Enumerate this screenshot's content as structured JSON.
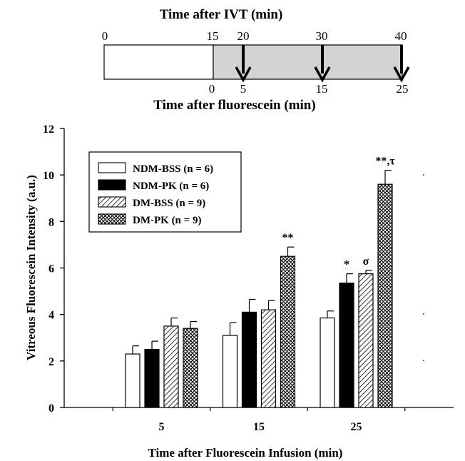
{
  "timeline": {
    "top_title": "Time after IVT (min)",
    "bottom_title": "Time after fluorescein (min)",
    "ivt_ticks": [
      "0",
      "15",
      "20",
      "30",
      "40"
    ],
    "fluorescein_ticks": [
      "0",
      "5",
      "15",
      "25"
    ],
    "colors": {
      "before": "#ffffff",
      "after": "#d3d3d3",
      "arrow": "#000000"
    }
  },
  "chart_data": {
    "type": "bar",
    "title": "",
    "xlabel": "Time after Fluorescein Infusion (min)",
    "ylabel": "Vitreous Fluorescein Intensity (a.u.)",
    "ylim": [
      0,
      12
    ],
    "yticks": [
      "0",
      "2",
      "4",
      "6",
      "8",
      "10",
      "12"
    ],
    "categories": [
      "5",
      "15",
      "25"
    ],
    "legend_position": "top-left",
    "grid": false,
    "series": [
      {
        "name": "NDM-BSS",
        "n_label": "(n = 6)",
        "pattern": "white",
        "values": [
          2.3,
          3.1,
          3.85
        ],
        "errors": [
          0.35,
          0.55,
          0.3
        ]
      },
      {
        "name": "NDM-PK",
        "n_label": "(n = 6)",
        "pattern": "black",
        "values": [
          2.5,
          4.1,
          5.35
        ],
        "errors": [
          0.35,
          0.55,
          0.4
        ]
      },
      {
        "name": "DM-BSS",
        "n_label": "(n = 9)",
        "pattern": "diagonal-hatch",
        "values": [
          3.5,
          4.2,
          5.75
        ],
        "errors": [
          0.35,
          0.4,
          0.15
        ]
      },
      {
        "name": "DM-PK",
        "n_label": "(n = 9)",
        "pattern": "crosshatch",
        "values": [
          3.4,
          6.5,
          9.6
        ],
        "errors": [
          0.3,
          0.4,
          0.6
        ]
      }
    ],
    "annotations": [
      {
        "series": 3,
        "category": 1,
        "text": "**"
      },
      {
        "series": 1,
        "category": 2,
        "text": "*"
      },
      {
        "series": 2,
        "category": 2,
        "text": "σ"
      },
      {
        "series": 3,
        "category": 2,
        "text": "**,τ"
      }
    ]
  }
}
